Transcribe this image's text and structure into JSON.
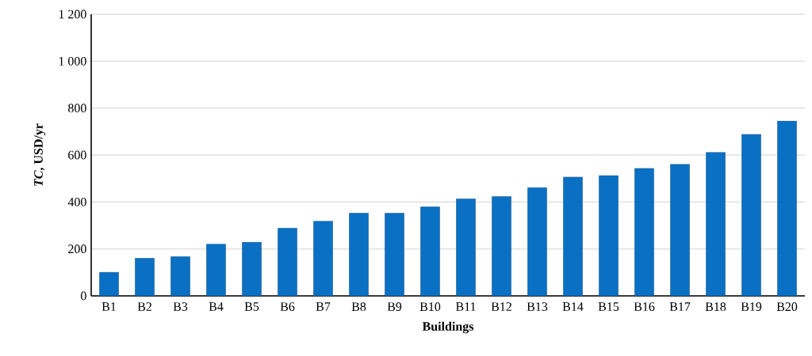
{
  "chart_data": {
    "type": "bar",
    "xlabel": "Buildings",
    "ylabel": "*TC*, USD/yr",
    "categories": [
      "B1",
      "B2",
      "B3",
      "B4",
      "B5",
      "B6",
      "B7",
      "B8",
      "B9",
      "B10",
      "B11",
      "B12",
      "B13",
      "B14",
      "B15",
      "B16",
      "B17",
      "B18",
      "B19",
      "B20"
    ],
    "values": [
      100,
      160,
      167,
      220,
      228,
      288,
      318,
      352,
      352,
      379,
      413,
      423,
      461,
      506,
      512,
      543,
      560,
      611,
      688,
      745
    ],
    "color": "#0a70c4",
    "ylim": [
      0,
      1200
    ],
    "yticks": [
      0,
      200,
      400,
      600,
      800,
      {
        "value": 1000,
        "label": "1 000"
      },
      {
        "value": 1200,
        "label": "1 200"
      }
    ],
    "grid": "y"
  }
}
